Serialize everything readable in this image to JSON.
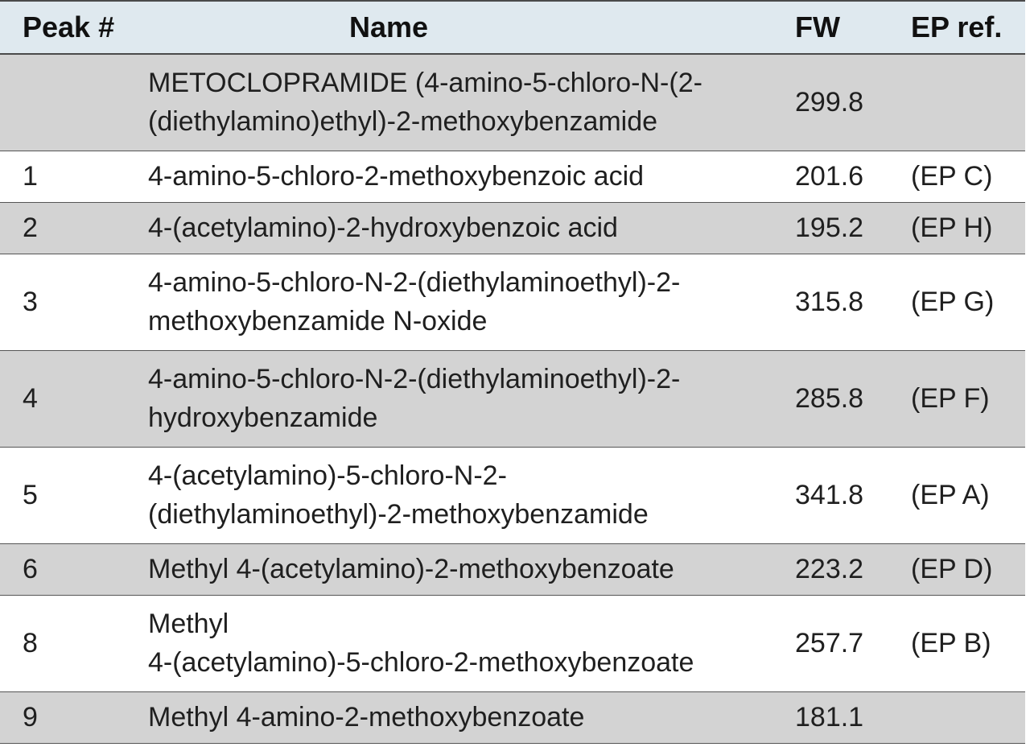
{
  "table": {
    "headers": {
      "peak": "Peak #",
      "name": "Name",
      "fw": "FW",
      "ep": "EP ref."
    },
    "rows": [
      {
        "peak": "",
        "name_line1": "METOCLOPRAMIDE (4-amino-5-chloro-N-(2-",
        "name_line2": "(diethylamino)ethyl)-2-methoxybenzamide",
        "fw": "299.8",
        "ep": ""
      },
      {
        "peak": "1",
        "name_line1": "4-amino-5-chloro-2-methoxybenzoic acid",
        "name_line2": "",
        "fw": "201.6",
        "ep": "(EP C)"
      },
      {
        "peak": "2",
        "name_line1": "4-(acetylamino)-2-hydroxybenzoic acid",
        "name_line2": "",
        "fw": "195.2",
        "ep": "(EP H)"
      },
      {
        "peak": "3",
        "name_line1": "4-amino-5-chloro-N-2-(diethylaminoethyl)-2-",
        "name_line2": "methoxybenzamide N-oxide",
        "fw": "315.8",
        "ep": "(EP G)"
      },
      {
        "peak": "4",
        "name_line1": "4-amino-5-chloro-N-2-(diethylaminoethyl)-2-",
        "name_line2": "hydroxybenzamide",
        "fw": "285.8",
        "ep": "(EP F)"
      },
      {
        "peak": "5",
        "name_line1": "4-(acetylamino)-5-chloro-N-2-",
        "name_line2": "(diethylaminoethyl)-2-methoxybenzamide",
        "fw": "341.8",
        "ep": "(EP A)"
      },
      {
        "peak": "6",
        "name_line1": "Methyl 4-(acetylamino)-2-methoxybenzoate",
        "name_line2": "",
        "fw": "223.2",
        "ep": "(EP D)"
      },
      {
        "peak": "8",
        "name_line1": "Methyl",
        "name_line2": "4-(acetylamino)-5-chloro-2-methoxybenzoate",
        "fw": "257.7",
        "ep": "(EP B)"
      },
      {
        "peak": "9",
        "name_line1": "Methyl 4-amino-2-methoxybenzoate",
        "name_line2": "",
        "fw": "181.1",
        "ep": ""
      }
    ]
  }
}
